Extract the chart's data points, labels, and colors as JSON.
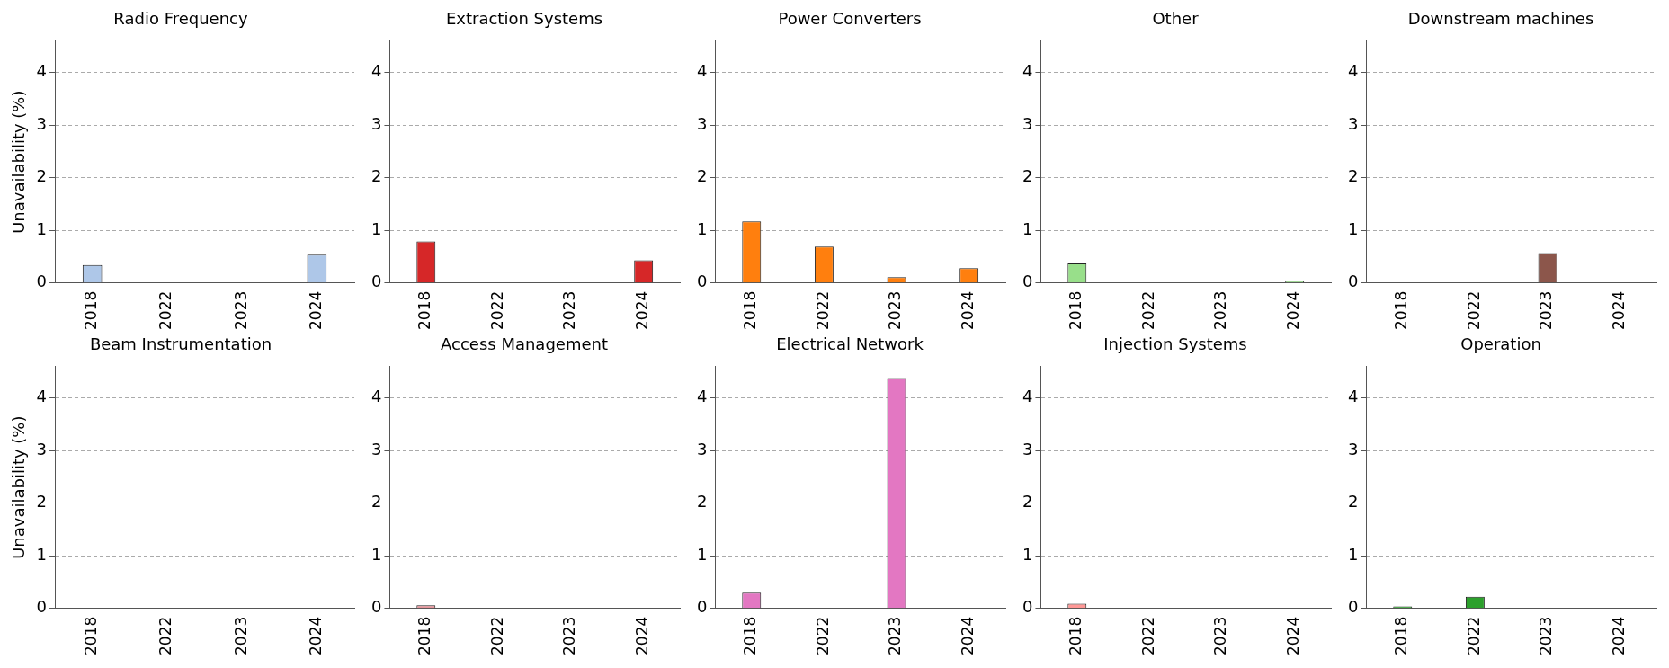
{
  "chart_data": [
    {
      "type": "bar",
      "title": "Radio Frequency",
      "ylabel": "Unavailability (%)",
      "categories": [
        "2018",
        "2022",
        "2023",
        "2024"
      ],
      "values": [
        0.34,
        0,
        0,
        0.54
      ],
      "color": "#aec7e8",
      "ylim": [
        0,
        4.6
      ],
      "yticks": [
        0,
        1,
        2,
        3,
        4
      ],
      "grid": "y",
      "legend": false
    },
    {
      "type": "bar",
      "title": "Extraction Systems",
      "categories": [
        "2018",
        "2022",
        "2023",
        "2024"
      ],
      "values": [
        0.79,
        0,
        0,
        0.43
      ],
      "color": "#d62728",
      "ylim": [
        0,
        4.6
      ],
      "yticks": [
        0,
        1,
        2,
        3,
        4
      ],
      "grid": "y",
      "legend": false
    },
    {
      "type": "bar",
      "title": "Power Converters",
      "categories": [
        "2018",
        "2022",
        "2023",
        "2024"
      ],
      "values": [
        1.17,
        0.69,
        0.11,
        0.28
      ],
      "color": "#ff7f0e",
      "ylim": [
        0,
        4.6
      ],
      "yticks": [
        0,
        1,
        2,
        3,
        4
      ],
      "grid": "y",
      "legend": false
    },
    {
      "type": "bar",
      "title": "Other",
      "categories": [
        "2018",
        "2022",
        "2023",
        "2024"
      ],
      "values": [
        0.37,
        0,
        0,
        0.04
      ],
      "color": "#98df8a",
      "ylim": [
        0,
        4.6
      ],
      "yticks": [
        0,
        1,
        2,
        3,
        4
      ],
      "grid": "y",
      "legend": false
    },
    {
      "type": "bar",
      "title": "Downstream machines",
      "categories": [
        "2018",
        "2022",
        "2023",
        "2024"
      ],
      "values": [
        0,
        0,
        0.57,
        0
      ],
      "color": "#8c564b",
      "ylim": [
        0,
        4.6
      ],
      "yticks": [
        0,
        1,
        2,
        3,
        4
      ],
      "grid": "y",
      "legend": false
    },
    {
      "type": "bar",
      "title": "Beam Instrumentation",
      "ylabel": "Unavailability (%)",
      "categories": [
        "2018",
        "2022",
        "2023",
        "2024"
      ],
      "values": [
        0.01,
        0,
        0,
        0
      ],
      "color": "#1f77b4",
      "ylim": [
        0,
        4.6
      ],
      "yticks": [
        0,
        1,
        2,
        3,
        4
      ],
      "grid": "y",
      "legend": false
    },
    {
      "type": "bar",
      "title": "Access Management",
      "categories": [
        "2018",
        "2022",
        "2023",
        "2024"
      ],
      "values": [
        0.06,
        0,
        0,
        0
      ],
      "color": "#e7969c",
      "ylim": [
        0,
        4.6
      ],
      "yticks": [
        0,
        1,
        2,
        3,
        4
      ],
      "grid": "y",
      "legend": false
    },
    {
      "type": "bar",
      "title": "Electrical Network",
      "categories": [
        "2018",
        "2022",
        "2023",
        "2024"
      ],
      "values": [
        0.3,
        0,
        4.38,
        0
      ],
      "color": "#e377c2",
      "ylim": [
        0,
        4.6
      ],
      "yticks": [
        0,
        1,
        2,
        3,
        4
      ],
      "grid": "y",
      "legend": false
    },
    {
      "type": "bar",
      "title": "Injection Systems",
      "categories": [
        "2018",
        "2022",
        "2023",
        "2024"
      ],
      "values": [
        0.09,
        0,
        0,
        0
      ],
      "color": "#ff9896",
      "ylim": [
        0,
        4.6
      ],
      "yticks": [
        0,
        1,
        2,
        3,
        4
      ],
      "grid": "y",
      "legend": false
    },
    {
      "type": "bar",
      "title": "Operation",
      "categories": [
        "2018",
        "2022",
        "2023",
        "2024"
      ],
      "values": [
        0.04,
        0.22,
        0,
        0
      ],
      "color": "#2ca02c",
      "ylim": [
        0,
        4.6
      ],
      "yticks": [
        0,
        1,
        2,
        3,
        4
      ],
      "grid": "y",
      "legend": false
    }
  ]
}
